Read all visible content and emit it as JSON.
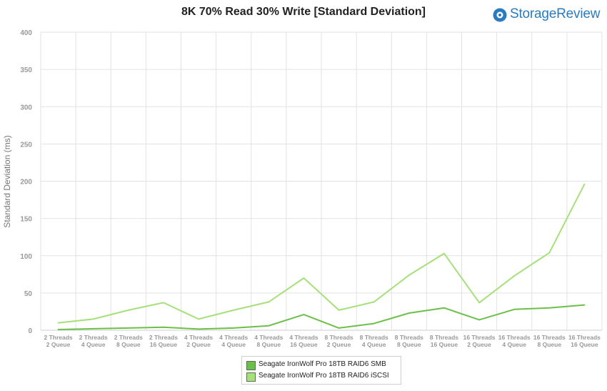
{
  "brand": {
    "name": "StorageReview",
    "icon": "storagereview-logo-icon",
    "color": "#2a7bbf"
  },
  "chart_data": {
    "type": "line",
    "title": "8K 70% Read 30% Write [Standard Deviation]",
    "xlabel": "",
    "ylabel": "Standard Deviation (ms)",
    "ylim": [
      0,
      400
    ],
    "yticks": [
      0,
      50,
      100,
      150,
      200,
      250,
      300,
      350,
      400
    ],
    "grid": true,
    "legend_position": "bottom-center",
    "categories": [
      [
        "2 Threads",
        "2 Queue"
      ],
      [
        "2 Threads",
        "4 Queue"
      ],
      [
        "2 Threads",
        "8 Queue"
      ],
      [
        "2 Threads",
        "16 Queue"
      ],
      [
        "4 Threads",
        "2 Queue"
      ],
      [
        "4 Threads",
        "4 Queue"
      ],
      [
        "4 Threads",
        "8 Queue"
      ],
      [
        "4 Threads",
        "16 Queue"
      ],
      [
        "8 Threads",
        "2 Queue"
      ],
      [
        "8 Threads",
        "4 Queue"
      ],
      [
        "8 Threads",
        "8 Queue"
      ],
      [
        "8 Threads",
        "16 Queue"
      ],
      [
        "16 Threads",
        "2 Queue"
      ],
      [
        "16 Threads",
        "4 Queue"
      ],
      [
        "16 Threads",
        "8 Queue"
      ],
      [
        "16 Threads",
        "16 Queue"
      ]
    ],
    "series": [
      {
        "name": "Seagate IronWolf Pro 18TB RAID6 SMB",
        "color": "#6cc04a",
        "values": [
          1,
          2,
          3,
          4,
          1.5,
          3,
          6,
          21,
          3,
          9,
          23,
          30,
          14,
          28,
          30,
          34
        ]
      },
      {
        "name": "Seagate IronWolf Pro 18TB RAID6 iSCSI",
        "color": "#a6e07a",
        "values": [
          10,
          15,
          27,
          37,
          15,
          27,
          38,
          70,
          27,
          38,
          74,
          103,
          37,
          73,
          104,
          196
        ]
      }
    ]
  }
}
